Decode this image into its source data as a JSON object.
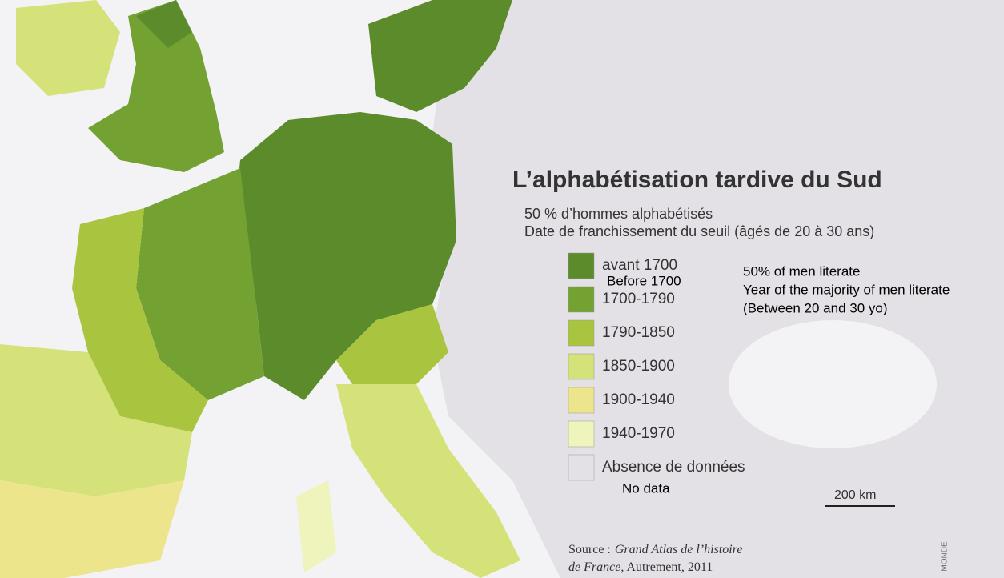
{
  "title": "L’alphabétisation tardive du Sud",
  "subtitle": [
    "50 % d’hommes alphabétisés",
    "Date de franchissement du seuil (âgés de 20 à 30 ans)"
  ],
  "legend": [
    {
      "label": "avant 1700",
      "translation": "Before 1700",
      "color": "#5b8b2b"
    },
    {
      "label": "1700-1790",
      "color": "#73a233"
    },
    {
      "label": "1790-1850",
      "color": "#a9c43f"
    },
    {
      "label": "1850-1900",
      "color": "#d5e27a"
    },
    {
      "label": "1900-1940",
      "color": "#ede58c"
    },
    {
      "label": "1940-1970",
      "color": "#eef4bb"
    },
    {
      "label": "Absence de données",
      "translation": "No data",
      "color": "#e3e1e6"
    }
  ],
  "annotation": [
    "50% of men literate",
    "Year of the majority of men literate",
    "(Between 20 and 30 yo)"
  ],
  "scale": "200 km",
  "source": {
    "prefix": "Source :",
    "work_line1": "Grand Atlas de l’histoire",
    "work_line2": "de France",
    "rest": ", Autrement, 2011"
  },
  "credit": "MONDE"
}
